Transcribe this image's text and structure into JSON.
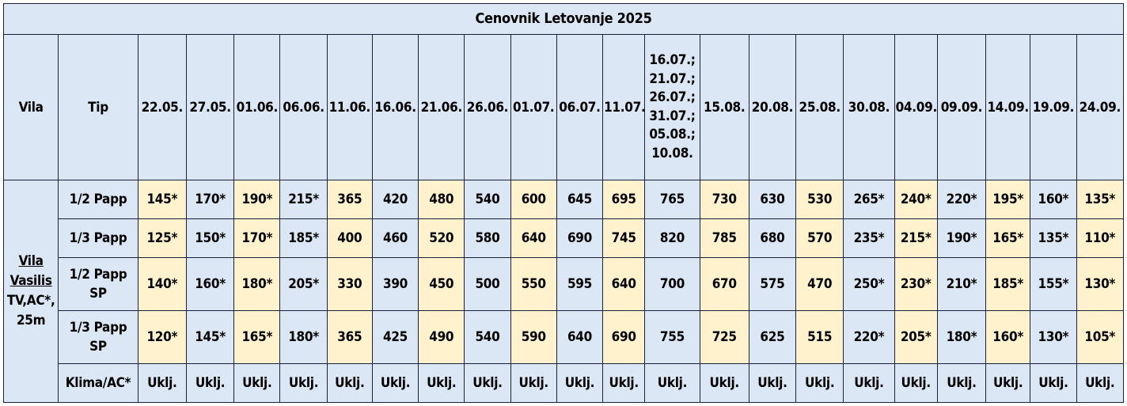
{
  "title": "Cenovnik Letovanje 2025",
  "headers": {
    "vila": "Vila",
    "tip": "Tip",
    "dates": [
      "22.05.",
      "27.05.",
      "01.06.",
      "06.06.",
      "11.06.",
      "16.06.",
      "21.06.",
      "26.06.",
      "01.07.",
      "06.07.",
      "11.07.",
      "16.07.;\n21.07.;\n26.07.;\n31.07.;\n05.08.;\n10.08.",
      "15.08.",
      "20.08.",
      "25.08.",
      "30.08.",
      "04.09.",
      "09.09.",
      "14.09.",
      "19.09.",
      "24.09."
    ]
  },
  "vila": {
    "name_line1": "Vila",
    "name_line2": "Vasilis",
    "details": "TV,AC*,",
    "size": "25m"
  },
  "rows": [
    {
      "tip": "1/2 Papp",
      "values": [
        "145*",
        "170*",
        "190*",
        "215*",
        "365",
        "420",
        "480",
        "540",
        "600",
        "645",
        "695",
        "765",
        "730",
        "630",
        "530",
        "265*",
        "240*",
        "220*",
        "195*",
        "160*",
        "135*"
      ]
    },
    {
      "tip": "1/3 Papp",
      "values": [
        "125*",
        "150*",
        "170*",
        "185*",
        "400",
        "460",
        "520",
        "580",
        "640",
        "690",
        "745",
        "820",
        "785",
        "680",
        "570",
        "235*",
        "215*",
        "190*",
        "165*",
        "135*",
        "110*"
      ]
    },
    {
      "tip": "1/2 Papp\nSP",
      "values": [
        "140*",
        "160*",
        "180*",
        "205*",
        "330",
        "390",
        "450",
        "500",
        "550",
        "595",
        "640",
        "700",
        "670",
        "575",
        "470",
        "250*",
        "230*",
        "210*",
        "185*",
        "155*",
        "130*"
      ]
    },
    {
      "tip": "1/3 Papp\nSP",
      "values": [
        "120*",
        "145*",
        "165*",
        "180*",
        "365",
        "425",
        "490",
        "540",
        "590",
        "640",
        "690",
        "755",
        "725",
        "625",
        "515",
        "220*",
        "205*",
        "180*",
        "160*",
        "130*",
        "105*"
      ]
    },
    {
      "tip": "Klima/AC*",
      "values": [
        "Uklj.",
        "Uklj.",
        "Uklj.",
        "Uklj.",
        "Uklj.",
        "Uklj.",
        "Uklj.",
        "Uklj.",
        "Uklj.",
        "Uklj.",
        "Uklj.",
        "Uklj.",
        "Uklj.",
        "Uklj.",
        "Uklj.",
        "Uklj.",
        "Uklj.",
        "Uklj.",
        "Uklj.",
        "Uklj.",
        "Uklj."
      ]
    }
  ]
}
